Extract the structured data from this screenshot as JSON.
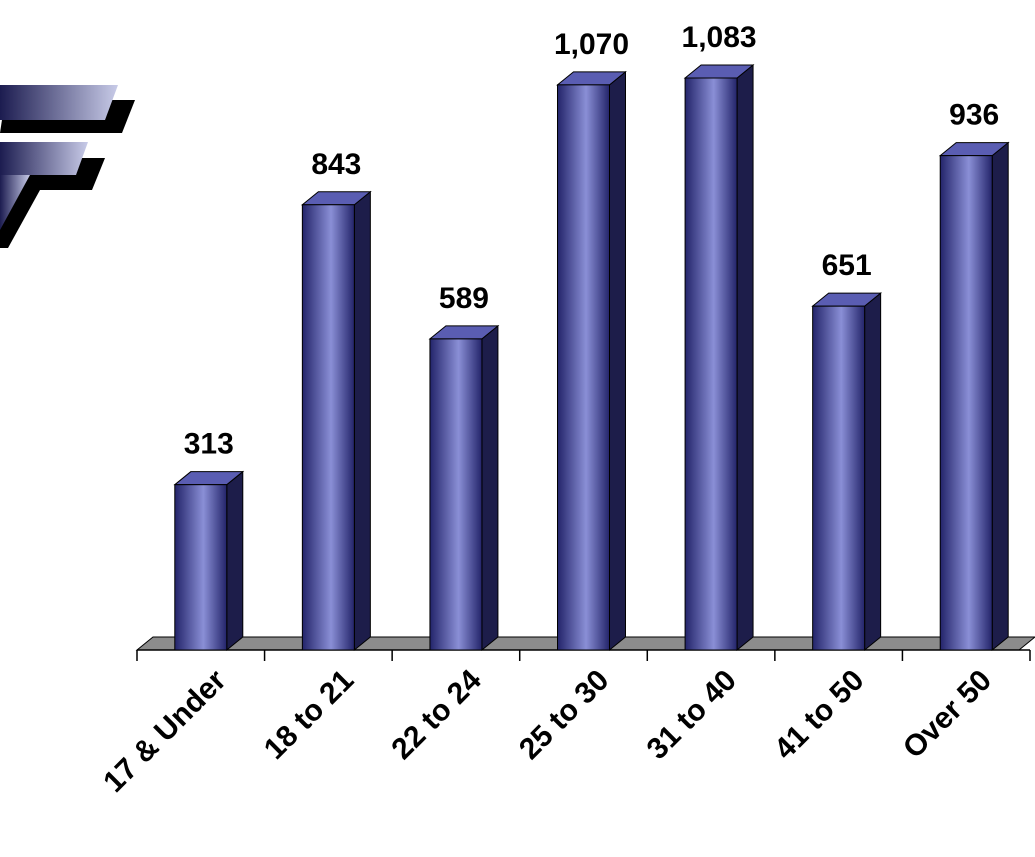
{
  "chart_data": {
    "type": "bar",
    "categories": [
      "17 & Under",
      "18 to 21",
      "22 to 24",
      "25 to 30",
      "31 to 40",
      "41 to 50",
      "Over 50"
    ],
    "values": [
      313,
      843,
      589,
      1070,
      1083,
      651,
      936
    ],
    "value_labels": [
      "313",
      "843",
      "589",
      "1,070",
      "1,083",
      "651",
      "936"
    ],
    "title": "",
    "xlabel": "",
    "ylabel": "",
    "ylim": [
      0,
      1083
    ],
    "grid": false,
    "legend": "none",
    "colors": {
      "bar_front_light": "#8a8fd6",
      "bar_front_dark": "#23246a",
      "bar_side": "#1d1d4a",
      "bar_top": "#5a5db2",
      "floor": "#8c8c8c",
      "logo_gradient_start": "#1c1c50",
      "logo_gradient_end": "#c8cbe8",
      "logo_shadow": "#000000"
    }
  },
  "logo": {
    "icon": "stylized-f-logo-icon"
  }
}
